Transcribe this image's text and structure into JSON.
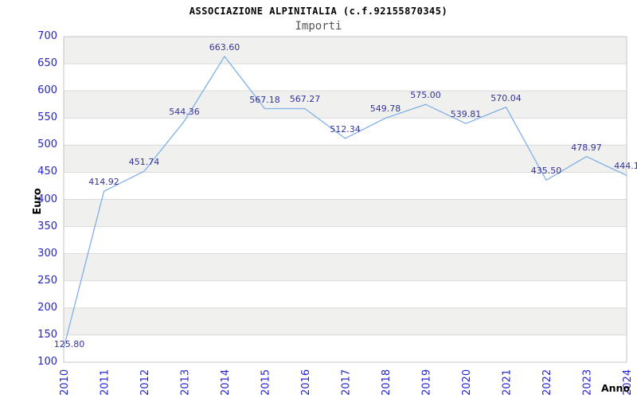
{
  "header": {
    "title": "ASSOCIAZIONE ALPINITALIA (c.f.92155870345)",
    "subtitle": "Importi"
  },
  "colors": {
    "line": "#7fb0e8",
    "tick_label": "#2323cd",
    "data_label": "#33339b",
    "band_gray": "#f0f0ef",
    "gridline": "#dadada",
    "plot_border": "#c6c6c6",
    "title_text": "#000000",
    "subtitle_text": "#555555",
    "background": "#ffffff"
  },
  "chart_data": {
    "type": "line",
    "title": "ASSOCIAZIONE ALPINITALIA (c.f.92155870345)",
    "subtitle": "Importi",
    "xlabel": "Anno",
    "ylabel": "Euro",
    "categories": [
      "2010",
      "2011",
      "2012",
      "2013",
      "2014",
      "2015",
      "2016",
      "2017",
      "2018",
      "2019",
      "2020",
      "2021",
      "2022",
      "2023",
      "2024"
    ],
    "values": [
      125.8,
      414.92,
      451.74,
      544.36,
      663.6,
      567.18,
      567.27,
      512.34,
      549.78,
      575.0,
      539.81,
      570.04,
      435.5,
      478.97,
      444.1
    ],
    "point_labels": [
      "125.80",
      "414.92",
      "451.74",
      "544.36",
      "663.60",
      "567.18",
      "567.27",
      "512.34",
      "549.78",
      "575.00",
      "539.81",
      "570.04",
      "435.50",
      "478.97",
      "444.1"
    ],
    "ylim": [
      100,
      700
    ],
    "ytick_step": 50,
    "y_ticks": [
      700,
      650,
      600,
      550,
      500,
      450,
      400,
      350,
      300,
      250,
      200,
      150,
      100
    ],
    "grid": "horizontal gridlines every 50, alternating gray bands",
    "legend": "none",
    "x_tick_rotation_deg": 90,
    "markers": "none"
  }
}
